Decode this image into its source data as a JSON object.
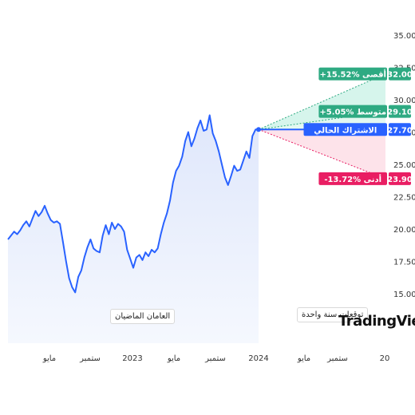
{
  "chart_data": {
    "type": "line",
    "x_ticks": [
      "مايو",
      "ستمبر",
      "2023",
      "مايو",
      "ستمبر",
      "2024",
      "مايو",
      "ستمبر",
      "20"
    ],
    "y_ticks": [
      "35.00",
      "32.50",
      "30.00",
      "27.50",
      "25.00",
      "22.50",
      "20.00",
      "17.50",
      "15.00"
    ],
    "ylim": [
      15,
      35
    ],
    "series": [
      {
        "values": [
          19.2,
          19.5,
          19.8,
          19.6,
          19.9,
          20.3,
          20.6,
          20.2,
          20.8,
          21.4,
          21.0,
          21.3,
          21.8,
          21.2,
          20.7,
          20.5,
          20.6,
          20.4,
          19.0,
          17.5,
          16.2,
          15.5,
          15.1,
          16.3,
          16.8,
          17.8,
          18.6,
          19.2,
          18.5,
          18.3,
          18.2,
          19.5,
          20.3,
          19.6,
          20.5,
          20.0,
          20.4,
          20.2,
          19.8,
          18.4,
          17.7,
          17.0,
          17.8,
          18.0,
          17.6,
          18.2,
          17.9,
          18.4,
          18.2,
          18.5,
          19.6,
          20.5,
          21.2,
          22.2,
          23.6,
          24.5,
          24.9,
          25.6,
          26.8,
          27.5,
          26.4,
          27.0,
          27.8,
          28.4,
          27.6,
          27.7,
          28.8,
          27.4,
          26.8,
          26.0,
          25.0,
          24.0,
          23.4,
          24.1,
          24.9,
          24.5,
          24.6,
          25.3,
          26.0,
          25.5,
          27.2,
          27.7,
          27.7
        ]
      }
    ],
    "current_price": 27.7,
    "forecast": {
      "high": {
        "label": "أقصى",
        "percent": "+15.52%",
        "price": "32.00",
        "value": 32.0,
        "color": "#2eaa82"
      },
      "average": {
        "label": "متوسط",
        "percent": "+5.05%",
        "price": "29.10",
        "value": 29.1,
        "color": "#2eaa82"
      },
      "current": {
        "label": "الاشتراك الحالي",
        "price": "27.70",
        "value": 27.7,
        "color": "#2962ff"
      },
      "low": {
        "label": "أدنى",
        "percent": "-13.72%",
        "price": "23.90",
        "value": 23.9,
        "color": "#e91e63"
      }
    },
    "line_color": "#2962ff",
    "grid": false
  },
  "periods": {
    "past": "العامان الماضيان",
    "forecast": "توقعات سنة واحدة"
  },
  "brand": "TradingView"
}
